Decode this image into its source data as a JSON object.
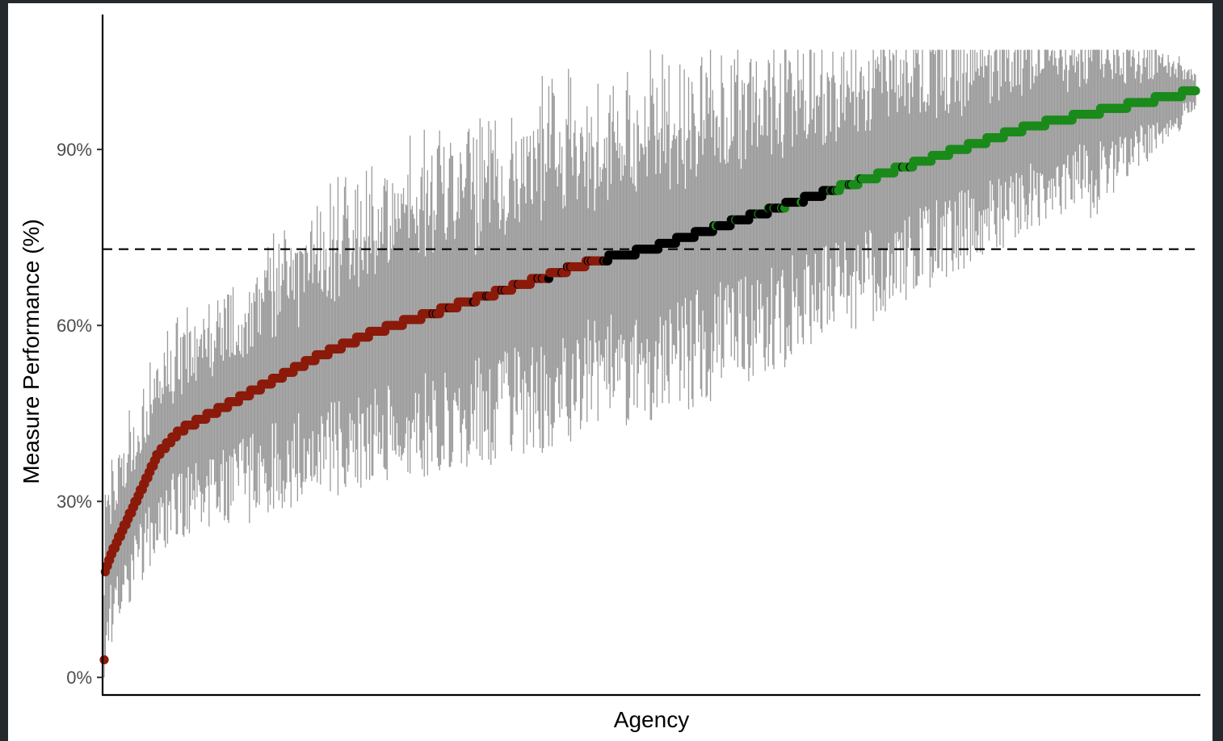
{
  "chart_data": {
    "type": "scatter",
    "title": "",
    "xlabel": "Agency",
    "ylabel": "Measure Performance (%)",
    "ylim": [
      -3,
      113
    ],
    "yticks": [
      0,
      30,
      60,
      90
    ],
    "ytick_labels": [
      "0%",
      "30%",
      "60%",
      "90%"
    ],
    "x_tick_labels": "none",
    "grid": false,
    "legend": "none",
    "reference_line": {
      "y": 73,
      "style": "dashed",
      "color": "#000000"
    },
    "n_agencies": 1000,
    "series": [
      {
        "color": "#8b1a0a"
      },
      {
        "color": "#000000"
      },
      {
        "color": "#1a8a1a"
      }
    ],
    "errorbar_color": "#8a8a8a",
    "point_group_ranges": [
      {
        "series": 0,
        "from_rank": 1,
        "to_rank": 460
      },
      {
        "series": 1,
        "from_rank": 461,
        "to_rank": 670
      },
      {
        "series": 2,
        "from_rank": 671,
        "to_rank": 1000
      }
    ],
    "curve_anchors": {
      "x_rank": [
        1,
        2,
        10,
        30,
        50,
        70,
        100,
        150,
        200,
        250,
        300,
        350,
        400,
        450,
        500,
        550,
        600,
        650,
        700,
        750,
        800,
        850,
        900,
        950,
        1000
      ],
      "y": [
        3,
        18,
        22,
        30,
        38,
        42,
        45,
        50,
        55,
        59,
        62,
        65,
        68,
        71,
        73,
        76,
        79,
        82,
        85,
        88,
        91,
        94,
        96,
        98,
        100
      ]
    }
  }
}
